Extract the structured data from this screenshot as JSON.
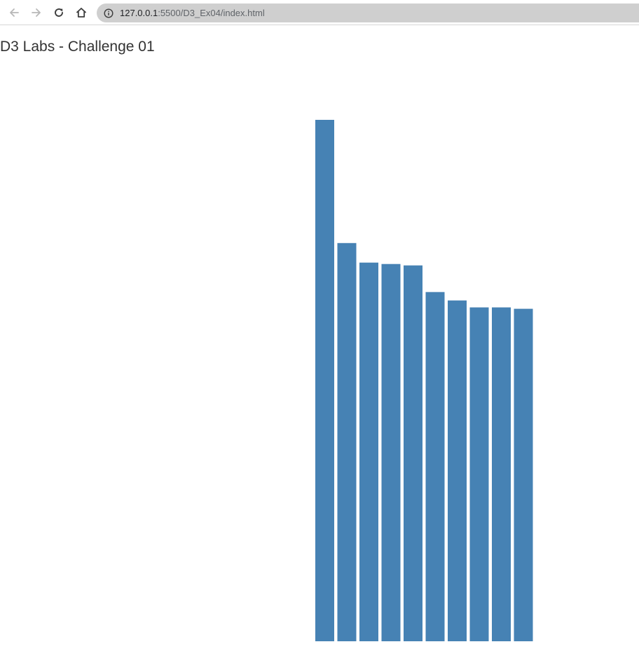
{
  "browser": {
    "url_host": "127.0.0.1",
    "url_path": ":5500/D3_Ex04/index.html"
  },
  "page": {
    "title": "D3 Labs - Challenge 01"
  },
  "colors": {
    "bar": "#4682b4"
  },
  "chart_data": {
    "type": "bar",
    "categories": [
      "",
      "",
      "",
      "",
      "",
      "",
      "",
      "",
      "",
      ""
    ],
    "values": [
      745,
      569,
      541,
      539,
      537,
      499,
      487,
      477,
      477,
      475
    ],
    "title": "",
    "xlabel": "",
    "ylabel": "",
    "ylim": [
      0,
      745
    ],
    "grid": false,
    "legend": "none"
  }
}
